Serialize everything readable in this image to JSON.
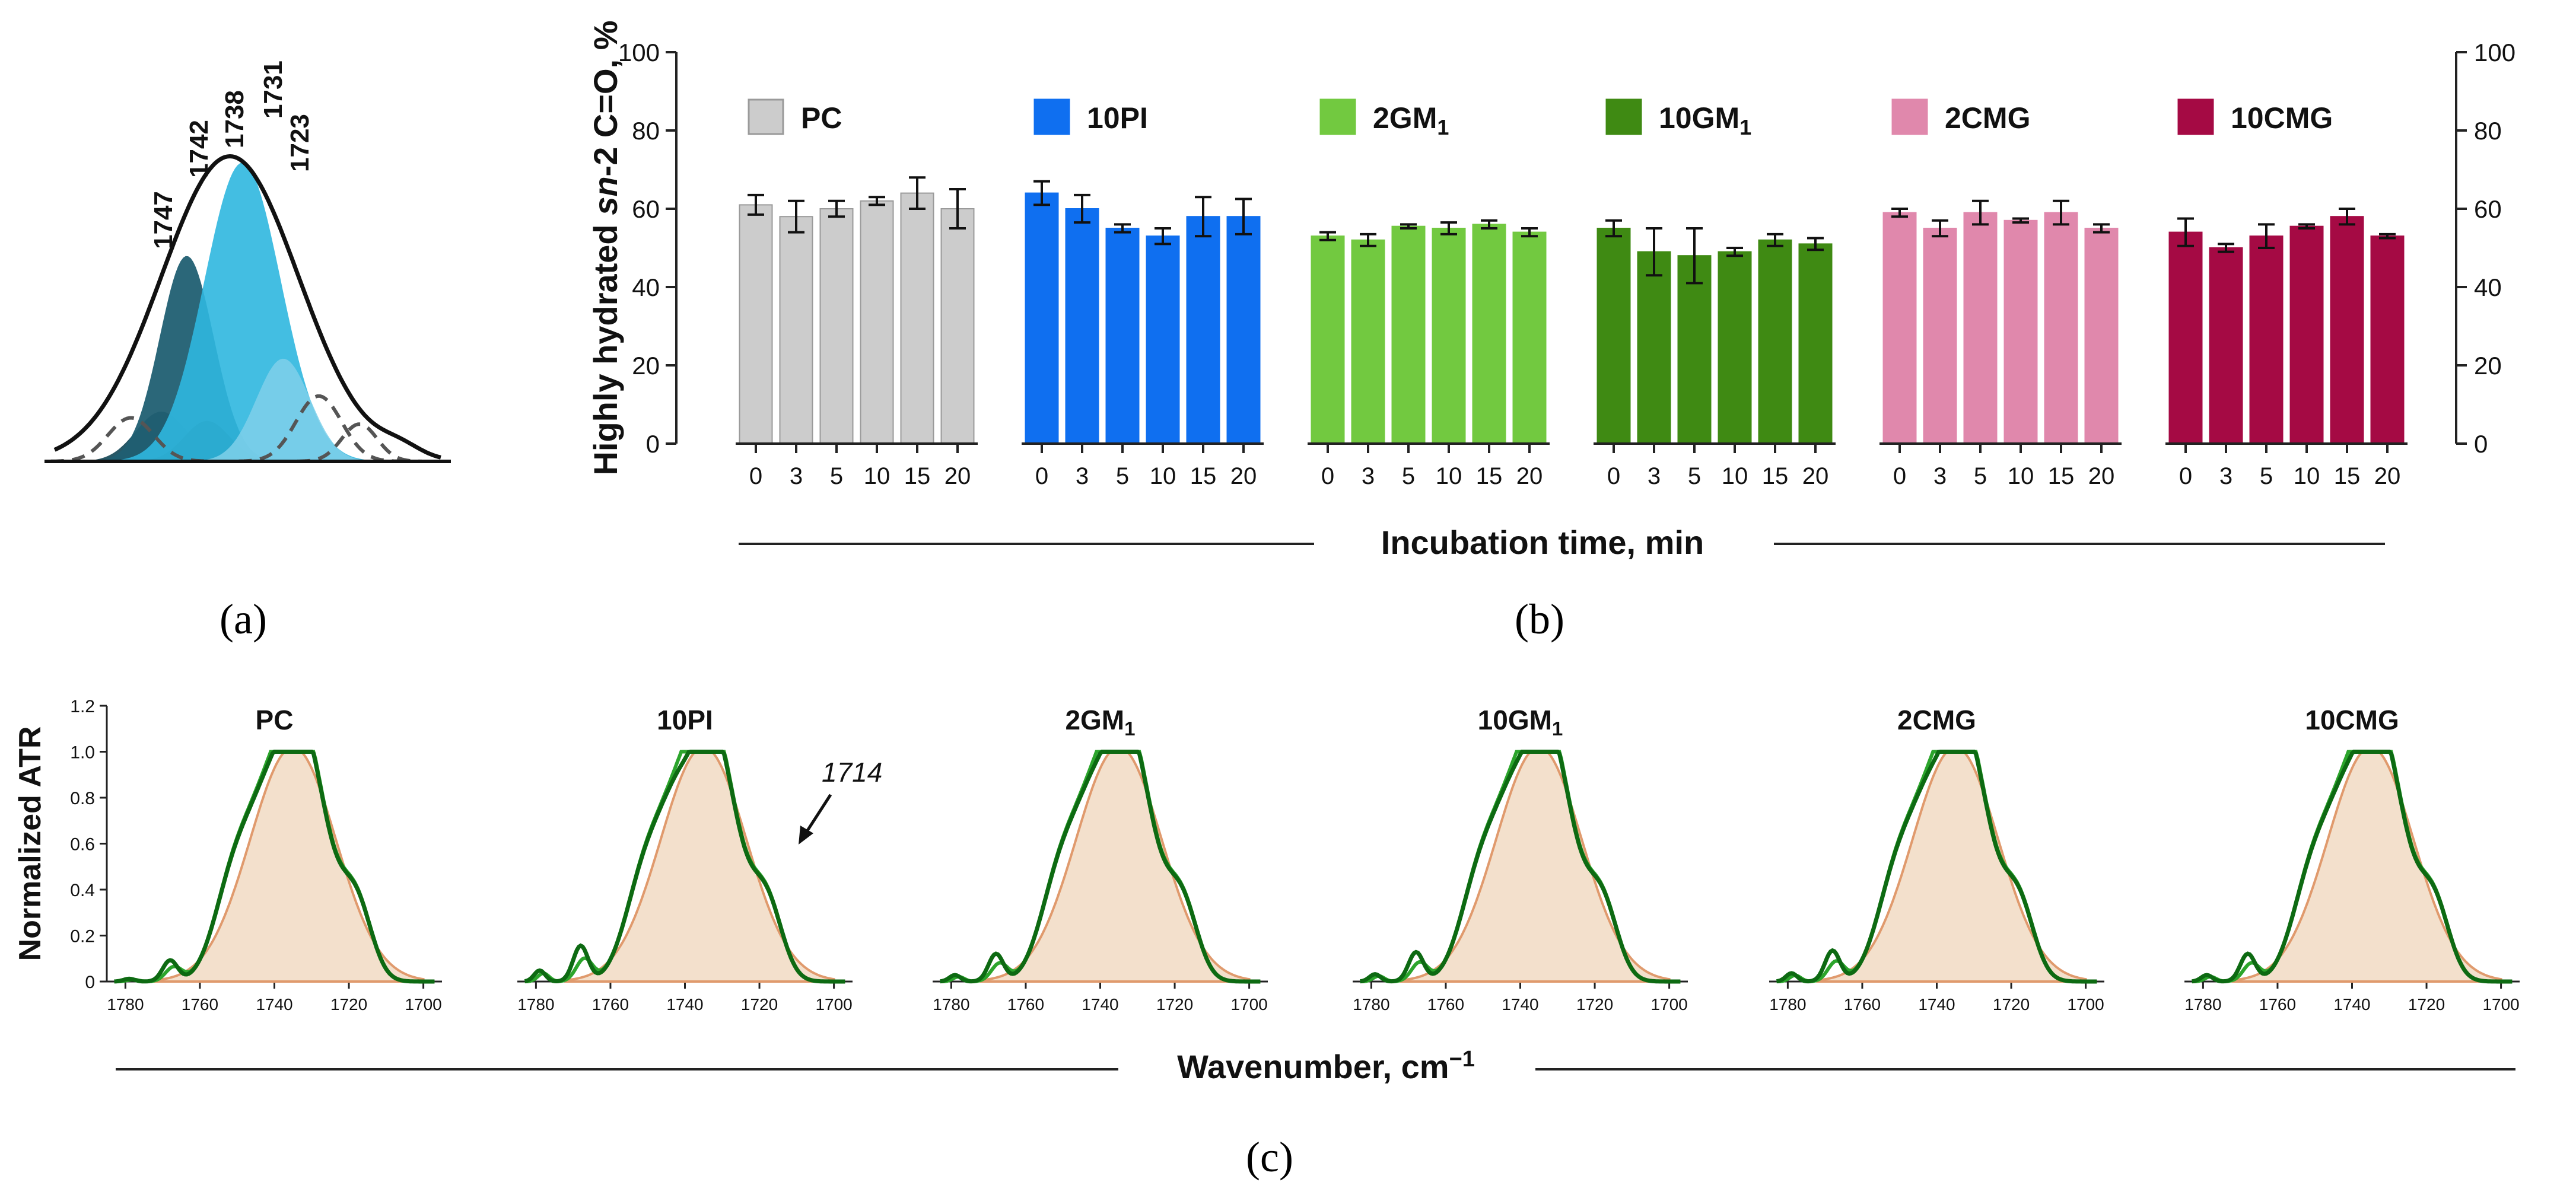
{
  "chart_data": [
    {
      "panel": "a",
      "type": "area",
      "panel_label": "(a)",
      "peak_labels": [
        "1747",
        "1742",
        "1738",
        "1731",
        "1723"
      ]
    },
    {
      "panel": "b",
      "type": "bar",
      "panel_label": "(b)",
      "ylabel": "Highly hydrated sn-2 C=O, %",
      "ylabel_parts": {
        "pre": "Highly hydrated ",
        "italic": "sn",
        "post": "-2 C=O, %"
      },
      "xlabel": "Incubation time, min",
      "ylim": [
        0,
        100
      ],
      "yticks": [
        0,
        20,
        40,
        60,
        80,
        100
      ],
      "categories": [
        "0",
        "3",
        "5",
        "10",
        "15",
        "20"
      ],
      "series": [
        {
          "name": "PC",
          "label_main": "PC",
          "label_sub": "",
          "color": "#cccccc",
          "stroke": "#9a9a9a",
          "values": [
            61,
            58,
            60,
            62,
            64,
            60
          ],
          "errors": [
            2.5,
            4,
            2,
            1,
            4,
            5
          ]
        },
        {
          "name": "10PI",
          "label_main": "10PI",
          "label_sub": "",
          "color": "#0f6ff0",
          "stroke": "#0f6ff0",
          "values": [
            64,
            60,
            55,
            53,
            58,
            58
          ],
          "errors": [
            3,
            3.5,
            1,
            2,
            5,
            4.5
          ]
        },
        {
          "name": "2GM1",
          "label_main": "2GM",
          "label_sub": "1",
          "color": "#72c940",
          "stroke": "#72c940",
          "values": [
            53,
            52,
            55.5,
            55,
            56,
            54
          ],
          "errors": [
            1,
            1.5,
            0.5,
            1.5,
            1,
            1
          ]
        },
        {
          "name": "10GM1",
          "label_main": "10GM",
          "label_sub": "1",
          "color": "#3f8a13",
          "stroke": "#3f8a13",
          "values": [
            55,
            49,
            48,
            49,
            52,
            51
          ],
          "errors": [
            2,
            6,
            7,
            1,
            1.5,
            1.5
          ]
        },
        {
          "name": "2CMG",
          "label_main": "2CMG",
          "label_sub": "",
          "color": "#e088ac",
          "stroke": "#e088ac",
          "values": [
            59,
            55,
            59,
            57,
            59,
            55
          ],
          "errors": [
            1,
            2,
            3,
            0.5,
            3,
            1
          ]
        },
        {
          "name": "10CMG",
          "label_main": "10CMG",
          "label_sub": "",
          "color": "#a50a44",
          "stroke": "#a50a44",
          "values": [
            54,
            50,
            53,
            55.5,
            58,
            53
          ],
          "errors": [
            3.5,
            1,
            3,
            0.5,
            2,
            0.5
          ]
        }
      ]
    },
    {
      "panel": "c",
      "type": "line",
      "panel_label": "(c)",
      "ylabel": "Normalized ATR",
      "xlabel": "Wavenumber, cm",
      "xlabel_sup": "−1",
      "xlim": [
        1785,
        1695
      ],
      "ylim": [
        0,
        1.2
      ],
      "xticks": [
        "1780",
        "1760",
        "1740",
        "1720",
        "1700"
      ],
      "yticks": [
        "0",
        "0.2",
        "0.4",
        "0.6",
        "0.8",
        "1.0",
        "1.2"
      ],
      "annotation": "1714",
      "subplots": [
        {
          "title_main": "PC",
          "title_sub": ""
        },
        {
          "title_main": "10PI",
          "title_sub": ""
        },
        {
          "title_main": "2GM",
          "title_sub": "1"
        },
        {
          "title_main": "10GM",
          "title_sub": "1"
        },
        {
          "title_main": "2CMG",
          "title_sub": ""
        },
        {
          "title_main": "10CMG",
          "title_sub": ""
        }
      ],
      "series_colors": {
        "fill": "#f3e0cc",
        "fill_edge": "#e09a6d",
        "light": "#2ca52c",
        "dark": "#0d6a12"
      }
    }
  ]
}
